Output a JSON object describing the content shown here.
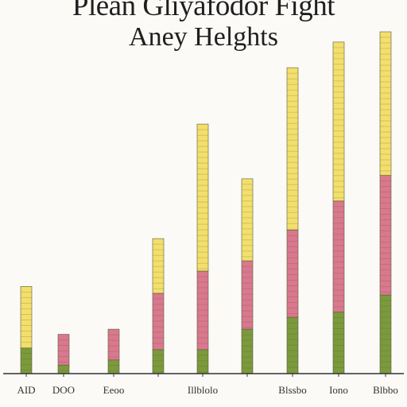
{
  "chart_data": {
    "type": "bar",
    "title": "Plean Gliyafodor Fight",
    "subtitle": "Aney Helghts",
    "xlabel": "",
    "ylabel": "",
    "ylim": [
      0,
      100
    ],
    "grid": false,
    "legend": "none",
    "categories": [
      "AID",
      "DOO",
      "Eeoo",
      "",
      "Illblolo",
      "",
      "Blssbo",
      "Iono",
      "Blbbo"
    ],
    "series": [
      {
        "name": "",
        "color": "#7a9a3c",
        "values": [
          7.5,
          2.5,
          4,
          7,
          7,
          13,
          16.5,
          18,
          23
        ]
      },
      {
        "name": "",
        "color": "#d9788e",
        "values": [
          0,
          9,
          9,
          16.5,
          23,
          20,
          25.5,
          32.5,
          35
        ]
      },
      {
        "name": "",
        "color": "#f2df6c",
        "values": [
          18,
          0,
          0,
          16,
          43,
          24,
          47.5,
          46.5,
          42
        ]
      }
    ],
    "bar_width": 14
  }
}
